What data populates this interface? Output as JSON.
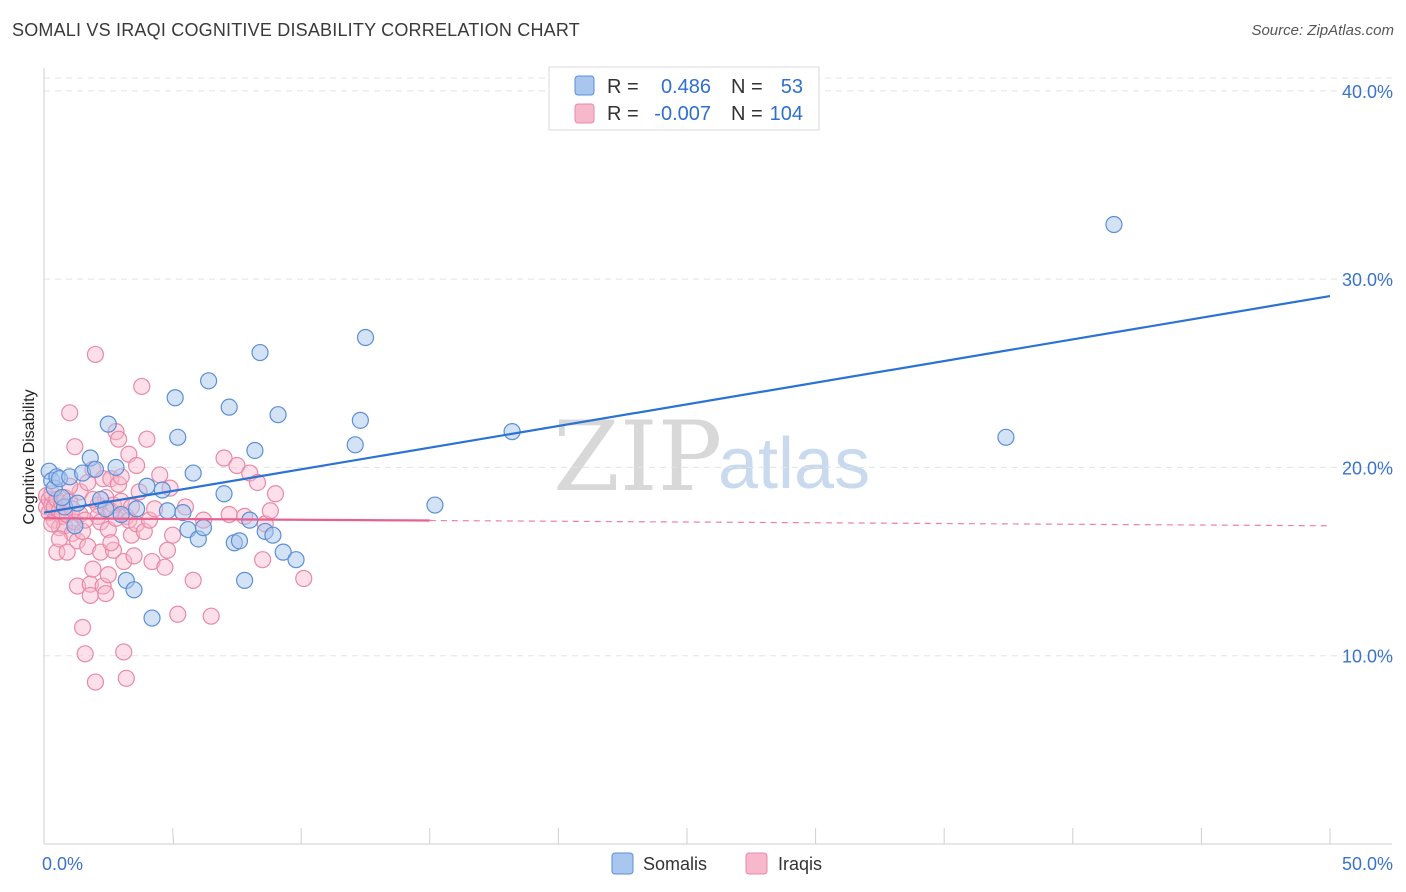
{
  "title": "SOMALI VS IRAQI COGNITIVE DISABILITY CORRELATION CHART",
  "source": "Source: ZipAtlas.com",
  "watermark": {
    "zip": "ZIP",
    "atlas": "atlas"
  },
  "colors": {
    "somali_fill": "#a9c6ee",
    "somali_stroke": "#5b8fd6",
    "somali_line": "#2a72d3",
    "iraqi_fill": "#f8b8cc",
    "iraqi_stroke": "#e78aa8",
    "iraqi_line": "#e8608f",
    "grid": "#e3e3e3",
    "axis_label": "#3a73c9"
  },
  "legend": {
    "rows": [
      {
        "r_label": "R =",
        "r_value": "0.486",
        "n_label": "N =",
        "n_value": "53"
      },
      {
        "r_label": "R =",
        "r_value": "-0.007",
        "n_label": "N =",
        "n_value": "104"
      }
    ]
  },
  "chart_data": {
    "type": "scatter",
    "title": "SOMALI VS IRAQI COGNITIVE DISABILITY CORRELATION CHART",
    "xlabel": "",
    "ylabel": "Cognitive Disability",
    "xlim": [
      0,
      50
    ],
    "ylim": [
      0,
      41
    ],
    "x_tick_labels": [
      "0.0%",
      "50.0%"
    ],
    "y_ticks": [
      10,
      20,
      30,
      40
    ],
    "y_tick_labels": [
      "10.0%",
      "20.0%",
      "30.0%",
      "40.0%"
    ],
    "x_minor_ticks": [
      5,
      10,
      15,
      20,
      25,
      30,
      35,
      40,
      45,
      50
    ],
    "legend_position": "bottom-center",
    "series": [
      {
        "name": "Somalis",
        "trend": {
          "x0": 0,
          "y0": 17.6,
          "x1": 50,
          "y1": 29.1,
          "dashed_from": null
        },
        "points": [
          [
            0.2,
            19.8
          ],
          [
            0.3,
            19.3
          ],
          [
            0.4,
            18.9
          ],
          [
            0.5,
            19.5
          ],
          [
            0.6,
            19.4
          ],
          [
            0.8,
            17.9
          ],
          [
            1.0,
            19.5
          ],
          [
            1.2,
            16.9
          ],
          [
            1.5,
            19.7
          ],
          [
            1.8,
            20.5
          ],
          [
            2.0,
            19.9
          ],
          [
            2.2,
            18.3
          ],
          [
            2.5,
            22.3
          ],
          [
            2.8,
            20.0
          ],
          [
            3.0,
            17.5
          ],
          [
            3.2,
            14.0
          ],
          [
            3.5,
            13.5
          ],
          [
            3.6,
            17.8
          ],
          [
            4.0,
            19.0
          ],
          [
            4.2,
            12.0
          ],
          [
            4.6,
            18.8
          ],
          [
            4.8,
            17.7
          ],
          [
            5.1,
            23.7
          ],
          [
            5.2,
            21.6
          ],
          [
            5.4,
            17.6
          ],
          [
            5.6,
            16.7
          ],
          [
            5.8,
            19.7
          ],
          [
            6.0,
            16.2
          ],
          [
            6.2,
            16.8
          ],
          [
            6.4,
            24.6
          ],
          [
            7.0,
            18.6
          ],
          [
            7.2,
            23.2
          ],
          [
            7.4,
            16.0
          ],
          [
            7.6,
            16.1
          ],
          [
            7.8,
            14.0
          ],
          [
            8.0,
            17.2
          ],
          [
            8.2,
            20.9
          ],
          [
            8.4,
            26.1
          ],
          [
            8.6,
            16.6
          ],
          [
            8.9,
            16.4
          ],
          [
            9.1,
            22.8
          ],
          [
            9.3,
            15.5
          ],
          [
            9.8,
            15.1
          ],
          [
            12.1,
            21.2
          ],
          [
            12.3,
            22.5
          ],
          [
            12.5,
            26.9
          ],
          [
            15.2,
            18.0
          ],
          [
            18.2,
            21.9
          ],
          [
            37.4,
            21.6
          ],
          [
            41.6,
            32.9
          ],
          [
            0.7,
            18.4
          ],
          [
            1.3,
            18.1
          ],
          [
            2.4,
            17.8
          ]
        ]
      },
      {
        "name": "Iraqis",
        "trend": {
          "x0": 0,
          "y0": 17.3,
          "x1": 50,
          "y1": 16.9,
          "dashed_from": 15
        },
        "points": [
          [
            0.1,
            18.5
          ],
          [
            0.1,
            17.9
          ],
          [
            0.2,
            18.3
          ],
          [
            0.2,
            17.6
          ],
          [
            0.3,
            18.0
          ],
          [
            0.3,
            18.6
          ],
          [
            0.4,
            17.2
          ],
          [
            0.4,
            17.9
          ],
          [
            0.5,
            18.3
          ],
          [
            0.5,
            15.5
          ],
          [
            0.6,
            17.7
          ],
          [
            0.6,
            16.8
          ],
          [
            0.7,
            18.1
          ],
          [
            0.7,
            17.4
          ],
          [
            0.8,
            18.4
          ],
          [
            0.8,
            16.9
          ],
          [
            0.9,
            17.5
          ],
          [
            0.9,
            15.5
          ],
          [
            1.0,
            22.9
          ],
          [
            1.0,
            18.2
          ],
          [
            1.1,
            16.5
          ],
          [
            1.1,
            17.8
          ],
          [
            1.2,
            21.1
          ],
          [
            1.2,
            17.1
          ],
          [
            1.3,
            16.1
          ],
          [
            1.3,
            13.7
          ],
          [
            1.4,
            18.7
          ],
          [
            1.4,
            17.5
          ],
          [
            1.5,
            16.6
          ],
          [
            1.5,
            11.5
          ],
          [
            1.6,
            10.1
          ],
          [
            1.6,
            17.2
          ],
          [
            1.7,
            19.2
          ],
          [
            1.7,
            15.8
          ],
          [
            1.8,
            13.8
          ],
          [
            1.8,
            13.2
          ],
          [
            1.9,
            19.9
          ],
          [
            1.9,
            14.6
          ],
          [
            2.0,
            26.0
          ],
          [
            2.0,
            8.6
          ],
          [
            2.1,
            18.0
          ],
          [
            2.1,
            17.4
          ],
          [
            2.2,
            15.5
          ],
          [
            2.2,
            17.1
          ],
          [
            2.3,
            19.4
          ],
          [
            2.3,
            13.7
          ],
          [
            2.4,
            18.4
          ],
          [
            2.4,
            13.3
          ],
          [
            2.5,
            16.7
          ],
          [
            2.5,
            14.3
          ],
          [
            2.6,
            17.7
          ],
          [
            2.6,
            19.4
          ],
          [
            2.7,
            18.0
          ],
          [
            2.7,
            15.6
          ],
          [
            2.8,
            21.9
          ],
          [
            2.8,
            17.3
          ],
          [
            2.9,
            21.5
          ],
          [
            2.9,
            19.1
          ],
          [
            3.0,
            19.5
          ],
          [
            3.0,
            18.2
          ],
          [
            3.1,
            15.0
          ],
          [
            3.1,
            10.2
          ],
          [
            3.2,
            17.4
          ],
          [
            3.2,
            8.8
          ],
          [
            3.3,
            20.7
          ],
          [
            3.3,
            17.2
          ],
          [
            3.4,
            16.4
          ],
          [
            3.4,
            17.9
          ],
          [
            3.5,
            15.3
          ],
          [
            3.6,
            20.1
          ],
          [
            3.6,
            17.0
          ],
          [
            3.8,
            24.3
          ],
          [
            3.9,
            16.6
          ],
          [
            4.0,
            21.5
          ],
          [
            4.1,
            17.2
          ],
          [
            4.2,
            15.0
          ],
          [
            4.3,
            17.8
          ],
          [
            4.5,
            19.6
          ],
          [
            4.7,
            14.7
          ],
          [
            4.8,
            15.6
          ],
          [
            5.0,
            16.4
          ],
          [
            5.2,
            12.2
          ],
          [
            5.5,
            17.9
          ],
          [
            5.8,
            14.0
          ],
          [
            6.2,
            17.2
          ],
          [
            6.5,
            12.1
          ],
          [
            7.0,
            20.5
          ],
          [
            7.2,
            17.5
          ],
          [
            7.5,
            20.1
          ],
          [
            7.8,
            17.4
          ],
          [
            8.0,
            19.7
          ],
          [
            8.3,
            19.2
          ],
          [
            8.5,
            15.1
          ],
          [
            8.6,
            17.0
          ],
          [
            8.8,
            17.7
          ],
          [
            9.0,
            18.6
          ],
          [
            10.1,
            14.1
          ],
          [
            0.3,
            17.0
          ],
          [
            0.6,
            16.2
          ],
          [
            1.0,
            19.0
          ],
          [
            1.9,
            18.3
          ],
          [
            2.6,
            16.0
          ],
          [
            3.7,
            18.7
          ],
          [
            4.9,
            18.9
          ]
        ]
      }
    ]
  }
}
